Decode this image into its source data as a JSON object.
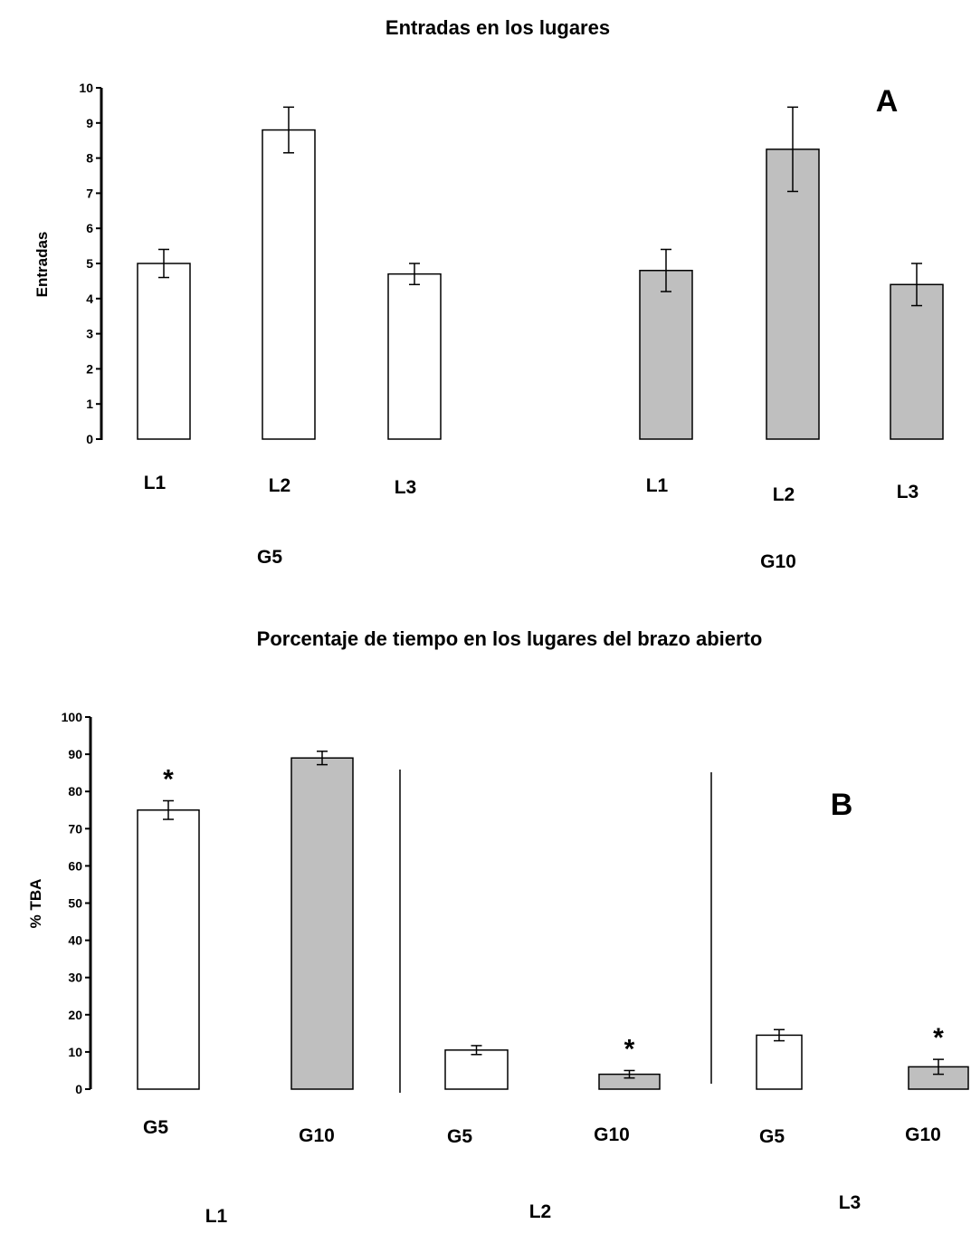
{
  "chart_data": [
    {
      "type": "bar",
      "title": "Entradas en los lugares",
      "panel_label": "A",
      "ylabel": "Entradas",
      "ylim": [
        0,
        10
      ],
      "yticks": [
        "0",
        "1",
        "2",
        "3",
        "4",
        "5",
        "6",
        "7",
        "8",
        "9",
        "10"
      ],
      "groups": [
        "G5",
        "G10"
      ],
      "categories": [
        "L1",
        "L2",
        "L3"
      ],
      "series": [
        {
          "group": "G5",
          "color": "#ffffff",
          "values": [
            5.0,
            8.8,
            4.7
          ],
          "errors": [
            0.4,
            0.65,
            0.3
          ]
        },
        {
          "group": "G10",
          "color": "#bfbfbf",
          "values": [
            4.8,
            8.25,
            4.4
          ],
          "errors": [
            0.6,
            1.2,
            0.6
          ]
        }
      ]
    },
    {
      "type": "bar",
      "title": "Porcentaje de tiempo en los lugares del brazo abierto",
      "panel_label": "B",
      "ylabel": "% TBA",
      "ylim": [
        0,
        100
      ],
      "yticks": [
        "0",
        "10",
        "20",
        "30",
        "40",
        "50",
        "60",
        "70",
        "80",
        "90",
        "100"
      ],
      "groups": [
        "L1",
        "L2",
        "L3"
      ],
      "categories": [
        "G5",
        "G10"
      ],
      "series": [
        {
          "group": "L1",
          "colors": [
            "#ffffff",
            "#bfbfbf"
          ],
          "values": [
            75,
            89
          ],
          "errors": [
            2.5,
            1.8
          ],
          "significant": [
            true,
            false
          ]
        },
        {
          "group": "L2",
          "colors": [
            "#ffffff",
            "#bfbfbf"
          ],
          "values": [
            10.5,
            4
          ],
          "errors": [
            1.2,
            1.0
          ],
          "significant": [
            false,
            true
          ]
        },
        {
          "group": "L3",
          "colors": [
            "#ffffff",
            "#bfbfbf"
          ],
          "values": [
            14.5,
            6
          ],
          "errors": [
            1.5,
            2.0
          ],
          "significant": [
            false,
            true
          ]
        }
      ],
      "significance_marker": "*"
    }
  ]
}
